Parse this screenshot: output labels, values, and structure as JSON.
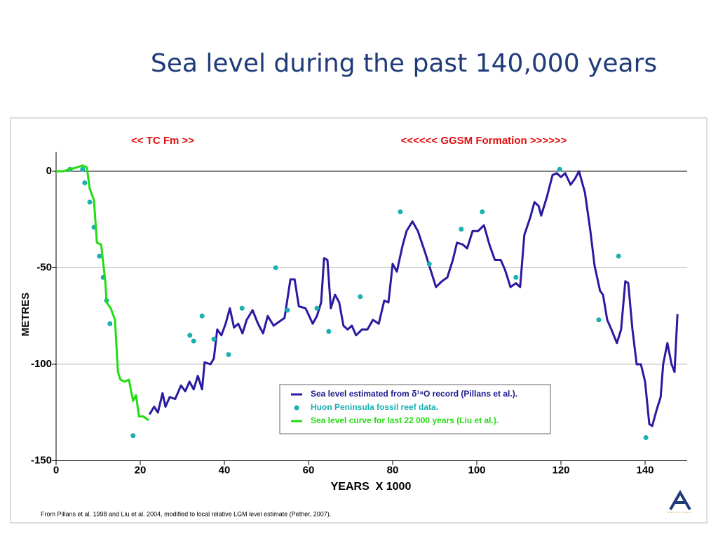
{
  "chart_data": {
    "type": "line",
    "title": "Sea level during the past 140,000 years",
    "annotations": [
      "<< TC Fm >>",
      "<<<<<< GGSM Formation >>>>>>"
    ],
    "note": "From Pillans et al. 1998 and Liu et al. 2004, modified to local relative LGM level estimate (Pether, 2007).",
    "x_label": "YEARS  X 1000",
    "y_label": "METRES",
    "xlim": [
      0,
      150
    ],
    "ylim": [
      -150,
      10
    ],
    "xticks": [
      0,
      20,
      40,
      60,
      80,
      100,
      120,
      140
    ],
    "yticks": [
      0,
      -50,
      -100,
      -150
    ],
    "grid": true,
    "legend": "lower right",
    "series": [
      {
        "name": "Sea level estimated from δ¹⁸O record (Pillans et al.).",
        "color": "#2a1aa0",
        "style": "line",
        "x": [
          22.2,
          23.3,
          24.2,
          25.3,
          26,
          27,
          28.3,
          29.7,
          30.7,
          31.7,
          32.7,
          33.7,
          34.7,
          35.3,
          36.7,
          37.5,
          38.3,
          39.3,
          40.3,
          41.3,
          42.3,
          43.3,
          44.3,
          45.3,
          46.7,
          48,
          49.2,
          50.3,
          51.7,
          53,
          54.3,
          55.7,
          56.7,
          57.7,
          59.3,
          61,
          62,
          63,
          63.7,
          64.5,
          65.3,
          66.3,
          67.3,
          68.3,
          69.3,
          70.3,
          71.3,
          72.7,
          74,
          75.3,
          76.7,
          78,
          79,
          80,
          81,
          82.3,
          83.3,
          84.7,
          86,
          87.7,
          89,
          90.3,
          91.7,
          93,
          94.3,
          95.3,
          96.7,
          97.7,
          99,
          100.3,
          101.7,
          103,
          104.3,
          105.7,
          106.7,
          108,
          109.3,
          110.3,
          111.3,
          112.7,
          113.7,
          114.7,
          115.3,
          116.7,
          118,
          119,
          120,
          121,
          122.3,
          123.3,
          124.3,
          125.7,
          127,
          128,
          129.3,
          130,
          131,
          132,
          133.3,
          134.3,
          135.3,
          136,
          137,
          138,
          139,
          140,
          141,
          141.7,
          142.7,
          143.7,
          144.3,
          145.3,
          146.3,
          147,
          147.7
        ],
        "values": [
          -126,
          -122,
          -125,
          -115,
          -122,
          -117,
          -118,
          -111,
          -114,
          -109,
          -113,
          -106,
          -113,
          -99,
          -100,
          -97,
          -82,
          -85,
          -79,
          -71,
          -81,
          -79,
          -84,
          -77,
          -72,
          -79,
          -84,
          -75,
          -80,
          -78,
          -76,
          -56,
          -56,
          -70,
          -71,
          -79,
          -75,
          -68,
          -45,
          -46,
          -71,
          -64,
          -68,
          -80,
          -82,
          -80,
          -85,
          -82,
          -82,
          -77,
          -79,
          -67,
          -68,
          -48,
          -52,
          -39,
          -31,
          -26,
          -31,
          -42,
          -51,
          -60,
          -57,
          -55,
          -46,
          -37,
          -38,
          -40,
          -31,
          -31,
          -28,
          -38,
          -46,
          -46,
          -51,
          -60,
          -58,
          -60,
          -33,
          -24,
          -16,
          -18,
          -23,
          -13,
          -2,
          -1,
          -3,
          -1,
          -7,
          -4,
          0,
          -11,
          -31,
          -49,
          -62,
          -64,
          -77,
          -82,
          -89,
          -82,
          -57,
          -58,
          -82,
          -100,
          -100,
          -109,
          -131,
          -132,
          -124,
          -117,
          -100,
          -89,
          -100,
          -104,
          -74
        ]
      },
      {
        "name": "Huon Peninsula fossil reef data.",
        "color": "#1ab0b0",
        "style": "scatter",
        "x": [
          3.3,
          6.3,
          6.8,
          8,
          9,
          10.3,
          11.2,
          12,
          12.8,
          18.3,
          31.8,
          32.7,
          34.7,
          37.5,
          41,
          44.2,
          52.2,
          55,
          62,
          64.8,
          72.3,
          81.8,
          88.7,
          96.3,
          101.3,
          109.3,
          119.7,
          129,
          133.7,
          140.2
        ],
        "values": [
          1,
          1,
          -6,
          -16,
          -29,
          -44,
          -55,
          -67,
          -79,
          -137,
          -85,
          -88,
          -75,
          -87,
          -95,
          -71,
          -50,
          -72,
          -71,
          -83,
          -65,
          -21,
          -48,
          -30,
          -21,
          -55,
          1,
          -77,
          -44,
          -138
        ]
      },
      {
        "name": "Sea level curve for last 22 000 years (Liu et al.).",
        "color": "#22dd11",
        "style": "line",
        "x": [
          0,
          1.7,
          3.3,
          5,
          6.3,
          7.3,
          8,
          9,
          9.7,
          10.7,
          11.7,
          12,
          13,
          14,
          14.7,
          15.3,
          16.3,
          17.3,
          18.3,
          19,
          19.7,
          20.7,
          22
        ],
        "values": [
          0,
          0,
          1,
          2,
          3,
          2,
          -9,
          -15,
          -37,
          -38,
          -57,
          -68,
          -71,
          -77,
          -104,
          -108,
          -109,
          -108,
          -119,
          -116,
          -127,
          -127,
          -129
        ]
      }
    ]
  }
}
